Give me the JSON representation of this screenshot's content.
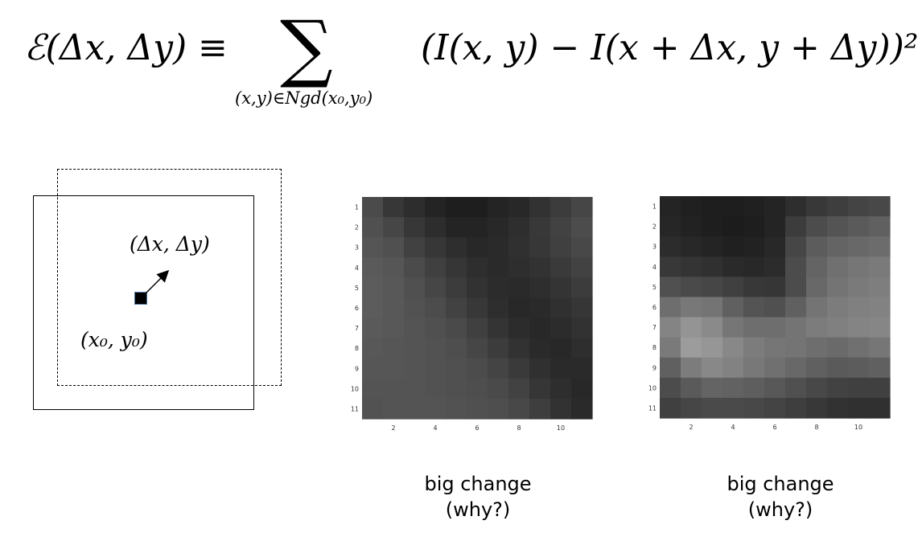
{
  "equation": {
    "lhs": "ℰ(Δx, Δy) ≡",
    "sum_symbol": "∑",
    "sum_subscript": "(x,y)∈Ngd(x₀,y₀)",
    "rhs": "(I(x, y) − I(x + Δx, y + Δy))²"
  },
  "sketch": {
    "shift_label": "(Δx, Δy)",
    "origin_label": "(x₀, y₀)"
  },
  "panels": [
    {
      "caption_line1": "big change",
      "caption_line2": "(why?)",
      "x_ticks": [
        "2",
        "4",
        "6",
        "8",
        "10"
      ],
      "y_ticks": [
        "1",
        "2",
        "3",
        "4",
        "5",
        "6",
        "7",
        "8",
        "9",
        "10",
        "11"
      ],
      "grid": [
        [
          75,
          55,
          45,
          36,
          30,
          30,
          36,
          40,
          50,
          60,
          70
        ],
        [
          80,
          70,
          55,
          45,
          36,
          36,
          40,
          46,
          56,
          66,
          76
        ],
        [
          85,
          80,
          65,
          55,
          46,
          40,
          42,
          48,
          55,
          64,
          72
        ],
        [
          90,
          86,
          75,
          64,
          54,
          46,
          42,
          46,
          50,
          58,
          66
        ],
        [
          92,
          88,
          80,
          70,
          60,
          50,
          44,
          42,
          46,
          52,
          60
        ],
        [
          92,
          88,
          82,
          76,
          66,
          56,
          46,
          40,
          42,
          48,
          54
        ],
        [
          90,
          88,
          84,
          80,
          74,
          64,
          52,
          44,
          40,
          44,
          50
        ],
        [
          88,
          86,
          84,
          82,
          78,
          70,
          60,
          50,
          42,
          40,
          46
        ],
        [
          86,
          86,
          84,
          82,
          80,
          76,
          68,
          58,
          48,
          42,
          42
        ],
        [
          84,
          84,
          84,
          82,
          80,
          78,
          74,
          66,
          54,
          46,
          40
        ],
        [
          82,
          84,
          84,
          84,
          82,
          80,
          78,
          72,
          62,
          50,
          42
        ]
      ]
    },
    {
      "caption_line1": "big change",
      "caption_line2": "(why?)",
      "x_ticks": [
        "2",
        "4",
        "6",
        "8",
        "10"
      ],
      "y_ticks": [
        "1",
        "2",
        "3",
        "4",
        "5",
        "6",
        "7",
        "8",
        "9",
        "10",
        "11"
      ],
      "grid": [
        [
          36,
          32,
          30,
          30,
          32,
          36,
          46,
          56,
          62,
          68,
          72
        ],
        [
          38,
          34,
          30,
          28,
          30,
          36,
          60,
          76,
          84,
          90,
          96
        ],
        [
          44,
          40,
          36,
          32,
          34,
          40,
          70,
          92,
          100,
          104,
          108
        ],
        [
          56,
          52,
          48,
          42,
          40,
          44,
          76,
          100,
          112,
          118,
          122
        ],
        [
          80,
          74,
          70,
          64,
          56,
          54,
          76,
          104,
          116,
          122,
          126
        ],
        [
          110,
          120,
          116,
          96,
          84,
          80,
          96,
          116,
          124,
          128,
          130
        ],
        [
          132,
          148,
          138,
          118,
          110,
          110,
          116,
          124,
          128,
          132,
          134
        ],
        [
          122,
          156,
          150,
          136,
          124,
          118,
          116,
          110,
          106,
          112,
          118
        ],
        [
          96,
          124,
          136,
          130,
          120,
          112,
          104,
          96,
          90,
          92,
          96
        ],
        [
          76,
          90,
          100,
          98,
          94,
          88,
          80,
          72,
          66,
          64,
          64
        ],
        [
          64,
          70,
          74,
          74,
          72,
          68,
          62,
          56,
          50,
          48,
          48
        ]
      ]
    }
  ]
}
